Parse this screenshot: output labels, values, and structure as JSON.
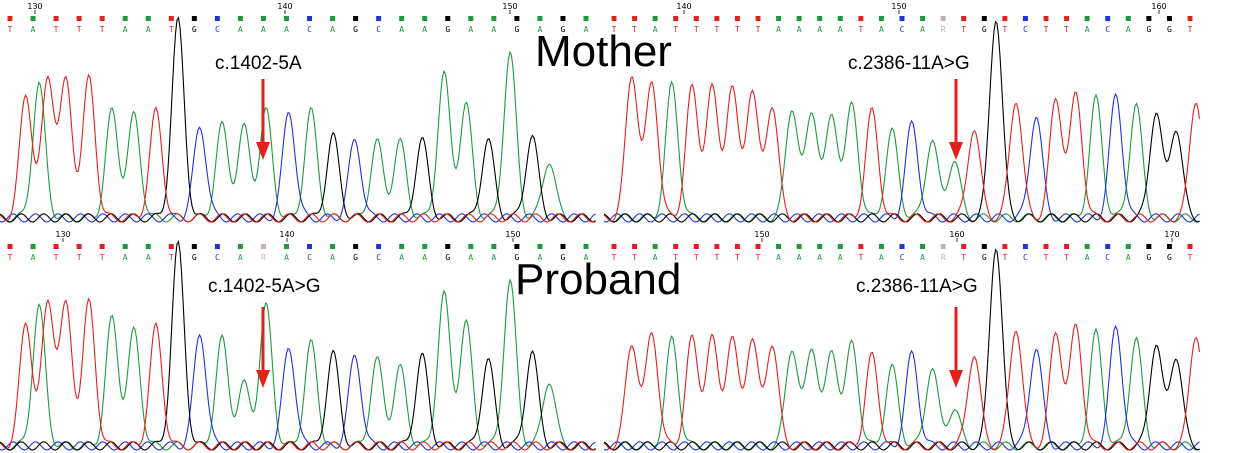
{
  "colors": {
    "A": "#1e9a3c",
    "C": "#1f33e0",
    "G": "#000000",
    "T": "#e4201c",
    "R": "#c8a8cc",
    "arrow": "#e4201c"
  },
  "panels": [
    {
      "id": "mother-left",
      "bases": "TATTTAATGCAAACAGCAAGAAGAGA",
      "ticks": [
        "130",
        "140",
        "150"
      ],
      "peaks": [
        [
          26,
          0.6,
          "T"
        ],
        [
          39,
          0.65,
          "A"
        ],
        [
          48,
          0.68,
          "T"
        ],
        [
          66,
          0.66,
          "T"
        ],
        [
          89,
          0.68,
          "T"
        ],
        [
          112,
          0.52,
          "A"
        ],
        [
          134,
          0.5,
          "A"
        ],
        [
          156,
          0.52,
          "T"
        ],
        [
          178,
          0.96,
          "G"
        ],
        [
          200,
          0.45,
          "C"
        ],
        [
          222,
          0.45,
          "A"
        ],
        [
          244,
          0.44,
          "A"
        ],
        [
          266,
          0.52,
          "A"
        ],
        [
          289,
          0.52,
          "C"
        ],
        [
          311,
          0.52,
          "A"
        ],
        [
          333,
          0.4,
          "G"
        ],
        [
          355,
          0.38,
          "C"
        ],
        [
          377,
          0.37,
          "A"
        ],
        [
          400,
          0.37,
          "A"
        ],
        [
          422,
          0.38,
          "G"
        ],
        [
          444,
          0.7,
          "A"
        ],
        [
          466,
          0.55,
          "A"
        ],
        [
          488,
          0.38,
          "G"
        ],
        [
          510,
          0.8,
          "A"
        ],
        [
          532,
          0.4,
          "G"
        ],
        [
          549,
          0.28,
          "A"
        ]
      ],
      "variant_label": "c.1402-5A"
    },
    {
      "id": "mother-right",
      "bases": "TTATTTTTAAAATACARTGTCTTACAGGT",
      "ticks": [
        "140",
        "150",
        "160"
      ],
      "peaks": [
        [
          28,
          0.7,
          "T"
        ],
        [
          48,
          0.66,
          "T"
        ],
        [
          68,
          0.65,
          "A"
        ],
        [
          88,
          0.63,
          "T"
        ],
        [
          108,
          0.63,
          "T"
        ],
        [
          128,
          0.63,
          "T"
        ],
        [
          148,
          0.62,
          "T"
        ],
        [
          168,
          0.55,
          "T"
        ],
        [
          188,
          0.54,
          "A"
        ],
        [
          208,
          0.52,
          "A"
        ],
        [
          228,
          0.5,
          "A"
        ],
        [
          248,
          0.55,
          "A"
        ],
        [
          268,
          0.52,
          "T"
        ],
        [
          288,
          0.42,
          "A"
        ],
        [
          308,
          0.46,
          "C"
        ],
        [
          328,
          0.38,
          "A"
        ],
        [
          350,
          0.28,
          "A"
        ],
        [
          370,
          0.44,
          "T"
        ],
        [
          392,
          0.98,
          "G"
        ],
        [
          412,
          0.58,
          "T"
        ],
        [
          432,
          0.5,
          "C"
        ],
        [
          452,
          0.58,
          "T"
        ],
        [
          472,
          0.6,
          "T"
        ],
        [
          492,
          0.58,
          "A"
        ],
        [
          512,
          0.6,
          "C"
        ],
        [
          532,
          0.55,
          "A"
        ],
        [
          552,
          0.52,
          "G"
        ],
        [
          572,
          0.44,
          "G"
        ],
        [
          592,
          0.58,
          "T"
        ]
      ],
      "variant_label": "c.2386-11A>G"
    },
    {
      "id": "proband-left",
      "bases": "TATTTAATGCARACAGCAAGAAGAGA",
      "ticks": [
        "130",
        "140",
        "150"
      ],
      "peaks": [
        [
          26,
          0.6,
          "T"
        ],
        [
          39,
          0.68,
          "A"
        ],
        [
          48,
          0.7,
          "T"
        ],
        [
          66,
          0.68,
          "T"
        ],
        [
          89,
          0.7,
          "T"
        ],
        [
          112,
          0.62,
          "A"
        ],
        [
          134,
          0.56,
          "A"
        ],
        [
          156,
          0.58,
          "T"
        ],
        [
          178,
          0.98,
          "G"
        ],
        [
          200,
          0.55,
          "C"
        ],
        [
          222,
          0.52,
          "A"
        ],
        [
          244,
          0.3,
          "A"
        ],
        [
          266,
          0.68,
          "A"
        ],
        [
          289,
          0.48,
          "C"
        ],
        [
          311,
          0.5,
          "A"
        ],
        [
          333,
          0.45,
          "G"
        ],
        [
          355,
          0.44,
          "C"
        ],
        [
          377,
          0.42,
          "A"
        ],
        [
          400,
          0.38,
          "A"
        ],
        [
          422,
          0.44,
          "G"
        ],
        [
          444,
          0.74,
          "A"
        ],
        [
          466,
          0.6,
          "A"
        ],
        [
          488,
          0.42,
          "G"
        ],
        [
          510,
          0.8,
          "A"
        ],
        [
          532,
          0.46,
          "G"
        ],
        [
          549,
          0.32,
          "A"
        ]
      ],
      "variant_label": "c.1402-5A>G"
    },
    {
      "id": "proband-right",
      "bases": "TTATTTTTAAAATACARTGTCTTACAGGT",
      "ticks": [
        "150",
        "160",
        "170"
      ],
      "peaks": [
        [
          28,
          0.5,
          "T"
        ],
        [
          48,
          0.55,
          "T"
        ],
        [
          68,
          0.52,
          "A"
        ],
        [
          88,
          0.52,
          "T"
        ],
        [
          108,
          0.52,
          "T"
        ],
        [
          128,
          0.52,
          "T"
        ],
        [
          148,
          0.52,
          "T"
        ],
        [
          168,
          0.5,
          "T"
        ],
        [
          188,
          0.48,
          "A"
        ],
        [
          208,
          0.48,
          "A"
        ],
        [
          228,
          0.46,
          "A"
        ],
        [
          248,
          0.5,
          "A"
        ],
        [
          268,
          0.44,
          "T"
        ],
        [
          288,
          0.38,
          "A"
        ],
        [
          308,
          0.45,
          "C"
        ],
        [
          328,
          0.38,
          "A"
        ],
        [
          350,
          0.18,
          "A"
        ],
        [
          370,
          0.45,
          "T"
        ],
        [
          392,
          0.98,
          "G"
        ],
        [
          412,
          0.58,
          "T"
        ],
        [
          432,
          0.48,
          "C"
        ],
        [
          452,
          0.55,
          "T"
        ],
        [
          472,
          0.58,
          "T"
        ],
        [
          492,
          0.55,
          "A"
        ],
        [
          512,
          0.58,
          "C"
        ],
        [
          532,
          0.52,
          "A"
        ],
        [
          552,
          0.5,
          "G"
        ],
        [
          572,
          0.44,
          "G"
        ],
        [
          592,
          0.55,
          "T"
        ]
      ],
      "variant_label": "c.2386-11A>G"
    }
  ],
  "titles": {
    "top": "Mother",
    "bottom": "Proband"
  }
}
